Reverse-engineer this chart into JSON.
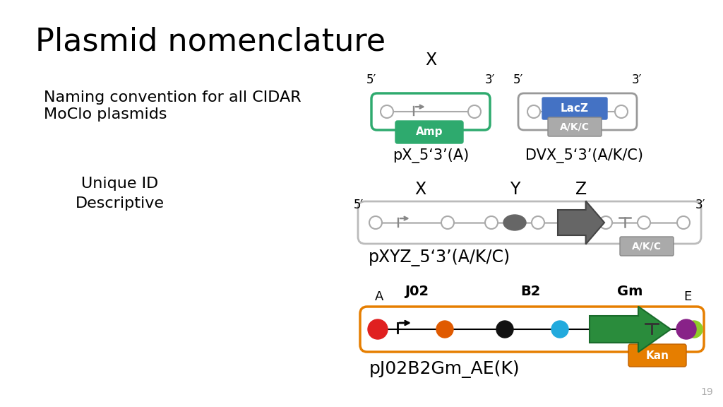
{
  "title": "Plasmid nomenclature",
  "subtitle1": "Naming convention for all CIDAR",
  "subtitle2": "MoClo plasmids",
  "label_unique": "Unique ID",
  "label_descriptive": "Descriptive",
  "page_number": "19",
  "bg_color": "#ffffff",
  "text_color": "#000000",
  "green_color": "#2eaa6e",
  "blue_color": "#4472c4",
  "orange_color": "#e67e00",
  "gray_elem": "#666666",
  "gray_light": "#aaaaaa",
  "gray_box": "#999999",
  "diagram1_label": "pX_5‘3’(A)",
  "diagram2_label": "DVX_5‘3’(A/K/C)",
  "diagram3_label": "pXYZ_5‘3’(A/K/C)",
  "diagram4_label": "pJ02B2Gm_AE(K)"
}
